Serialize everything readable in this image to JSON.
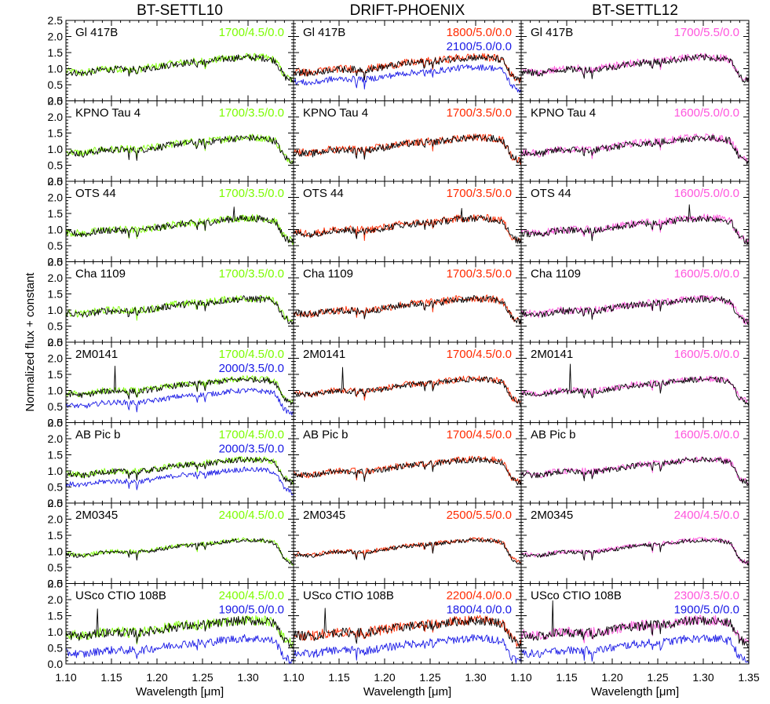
{
  "chart_data": {
    "type": "line",
    "columns": [
      "BT-SETTL10",
      "DRIFT-PHOENIX",
      "BT-SETTL12"
    ],
    "objects": [
      "Gl 417B",
      "KPNO Tau 4",
      "OTS 44",
      "Cha 1109",
      "2M0141",
      "AB Pic b",
      "2M0345",
      "USco CTIO 108B"
    ],
    "xlabel": "Wavelength [μm]",
    "ylabel": "Normalized flux + constant",
    "xlim": [
      1.1,
      1.35
    ],
    "ylim": [
      0.0,
      2.5
    ],
    "x_ticks": [
      "1.10",
      "1.15",
      "1.20",
      "1.25",
      "1.30",
      "1.35"
    ],
    "y_ticks": [
      "0.0",
      "0.5",
      "1.0",
      "1.5",
      "2.0",
      "2.5"
    ],
    "observed_color": "#000000",
    "colors": {
      "BT-SETTL10": "#7CFC00",
      "DRIFT-PHOENIX": "#FF2A00",
      "BT-SETTL12": "#FF55DD",
      "second_model": "#1A1AE6"
    },
    "model_labels": [
      [
        [
          {
            "text": "1700/4.5/0.0",
            "series": "primary"
          }
        ],
        [
          {
            "text": "1700/3.5/0.0",
            "series": "primary"
          }
        ],
        [
          {
            "text": "1700/3.5/0.0",
            "series": "primary"
          }
        ],
        [
          {
            "text": "1700/3.5/0.0",
            "series": "primary"
          }
        ],
        [
          {
            "text": "1700/4.5/0.0",
            "series": "primary"
          },
          {
            "text": "2000/3.5/0.0",
            "series": "second"
          }
        ],
        [
          {
            "text": "1700/4.5/0.0",
            "series": "primary"
          },
          {
            "text": "2000/3.5/0.0",
            "series": "second"
          }
        ],
        [
          {
            "text": "2400/4.5/0.0",
            "series": "primary"
          }
        ],
        [
          {
            "text": "2400/4.5/0.0",
            "series": "primary"
          },
          {
            "text": "1900/5.0/0.0",
            "series": "second"
          }
        ]
      ],
      [
        [
          {
            "text": "1800/5.0/0.0",
            "series": "primary"
          },
          {
            "text": "2100/5.0/0.0",
            "series": "second"
          }
        ],
        [
          {
            "text": "1700/3.5/0.0",
            "series": "primary"
          }
        ],
        [
          {
            "text": "1700/3.5/0.0",
            "series": "primary"
          }
        ],
        [
          {
            "text": "1700/3.5/0.0",
            "series": "primary"
          }
        ],
        [
          {
            "text": "1700/4.5/0.0",
            "series": "primary"
          }
        ],
        [
          {
            "text": "1700/4.5/0.0",
            "series": "primary"
          }
        ],
        [
          {
            "text": "2500/5.5/0.0",
            "series": "primary"
          }
        ],
        [
          {
            "text": "2200/4.0/0.0",
            "series": "primary"
          },
          {
            "text": "1800/4.0/0.0",
            "series": "second"
          }
        ]
      ],
      [
        [
          {
            "text": "1700/5.5/0.0",
            "series": "primary"
          }
        ],
        [
          {
            "text": "1600/5.0/0.0",
            "series": "primary"
          }
        ],
        [
          {
            "text": "1600/5.0/0.0",
            "series": "primary"
          }
        ],
        [
          {
            "text": "1600/5.0/0.0",
            "series": "primary"
          }
        ],
        [
          {
            "text": "1600/5.0/0.0",
            "series": "primary"
          }
        ],
        [
          {
            "text": "1600/5.0/0.0",
            "series": "primary"
          }
        ],
        [
          {
            "text": "2400/4.5/0.0",
            "series": "primary"
          }
        ],
        [
          {
            "text": "2300/3.5/0.0",
            "series": "primary"
          },
          {
            "text": "1900/5.0/0.0",
            "series": "second"
          }
        ]
      ]
    ],
    "continuum": {
      "x": [
        1.1,
        1.12,
        1.14,
        1.16,
        1.18,
        1.2,
        1.22,
        1.24,
        1.26,
        1.28,
        1.3,
        1.32,
        1.33,
        1.34,
        1.35
      ],
      "y": [
        0.9,
        0.85,
        0.97,
        0.98,
        0.97,
        1.05,
        1.15,
        1.2,
        1.24,
        1.32,
        1.35,
        1.32,
        1.25,
        0.75,
        0.6
      ]
    },
    "noise_level": [
      0.12,
      0.12,
      0.12,
      0.12,
      0.1,
      0.1,
      0.07,
      0.16
    ],
    "second_model_offset": [
      -0.3,
      null,
      null,
      null,
      -0.35,
      -0.3,
      null,
      -0.55
    ],
    "absorption_lines": [
      1.169,
      1.178,
      1.244,
      1.253
    ],
    "spikes": [
      null,
      null,
      {
        "x": 1.285,
        "h": 0.4
      },
      null,
      {
        "x": 1.154,
        "h": 0.8
      },
      null,
      null,
      {
        "x": 1.135,
        "h": 0.9
      }
    ]
  }
}
